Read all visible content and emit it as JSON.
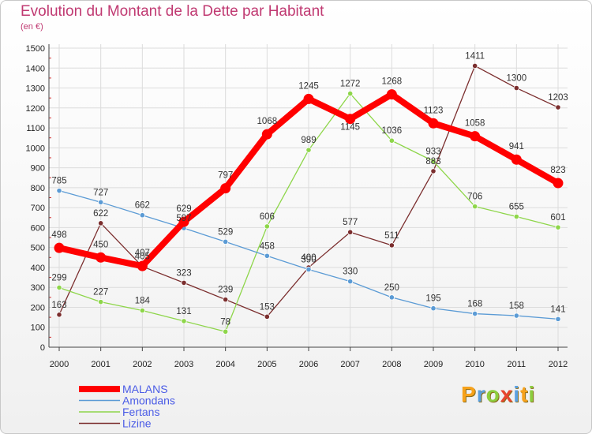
{
  "chart_data": {
    "type": "line",
    "title": "Evolution du Montant de la Dette par Habitant",
    "subtitle": "(en €)",
    "x": [
      "2000",
      "2001",
      "2002",
      "2003",
      "2004",
      "2005",
      "2006",
      "2007",
      "2008",
      "2009",
      "2010",
      "2011",
      "2012"
    ],
    "y_ticks": [
      "0",
      "100",
      "200",
      "300",
      "400",
      "500",
      "600",
      "700",
      "800",
      "900",
      "1000",
      "1100",
      "1200",
      "1300",
      "1400",
      "1500"
    ],
    "ylim": [
      0,
      1500
    ],
    "grid": true,
    "legend_position": "bottom-left",
    "series": [
      {
        "name": "MALANS",
        "color": "#ff0000",
        "values": [
          498,
          450,
          407,
          629,
          797,
          1068,
          1245,
          1145,
          1268,
          1123,
          1058,
          941,
          823
        ],
        "labels": [
          "498",
          "450",
          "407",
          "629",
          "797",
          "1068",
          "1245",
          "1145",
          "1268",
          "1123",
          "1058",
          "941",
          "823"
        ]
      },
      {
        "name": "Amondans",
        "color": "#5b9bd5",
        "values": [
          785,
          727,
          662,
          597,
          529,
          458,
          390,
          330,
          250,
          195,
          168,
          158,
          141
        ],
        "labels": [
          "785",
          "727",
          "662",
          "597",
          "529",
          "458",
          "390",
          "330",
          "250",
          "195",
          "168",
          "158",
          "141"
        ]
      },
      {
        "name": "Fertans",
        "color": "#8ed64a",
        "values": [
          299,
          227,
          184,
          131,
          78,
          606,
          989,
          1272,
          1036,
          933,
          706,
          655,
          601
        ],
        "labels": [
          "299",
          "227",
          "184",
          "131",
          "78",
          "606",
          "989",
          "1272",
          "1036",
          "933",
          "706",
          "655",
          "601"
        ]
      },
      {
        "name": "Lizine",
        "color": "#7b2e2e",
        "values": [
          163,
          622,
          405,
          323,
          239,
          153,
          400,
          577,
          511,
          883,
          1411,
          1300,
          1203
        ],
        "labels": [
          "163",
          "622",
          "405",
          "323",
          "239",
          "153",
          "400",
          "577",
          "511",
          "883",
          "1411",
          "1300",
          "1203"
        ]
      }
    ]
  },
  "brand": {
    "letters": [
      "P",
      "r",
      "o",
      "x",
      "i",
      "t",
      "i"
    ],
    "colors": [
      "#f7a21b",
      "#5aa0e0",
      "#8ccd3e",
      "#e8452f",
      "#5aa0e0",
      "#f7a21b",
      "#8ccd3e"
    ]
  }
}
